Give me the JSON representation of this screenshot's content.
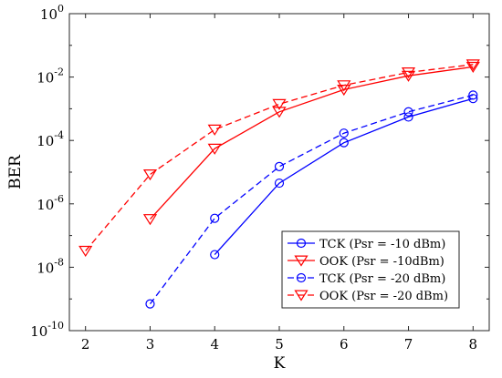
{
  "chart_data": {
    "type": "line",
    "title": "",
    "xlabel": "K",
    "ylabel": "BER",
    "xlim": [
      1.75,
      8.25
    ],
    "ylim_exponents": [
      -10,
      0
    ],
    "yscale": "log",
    "xticks": [
      "2",
      "3",
      "4",
      "5",
      "6",
      "7",
      "8"
    ],
    "yticks": [
      {
        "base": "10",
        "exp": "-10"
      },
      {
        "base": "10",
        "exp": "-8"
      },
      {
        "base": "10",
        "exp": "-6"
      },
      {
        "base": "10",
        "exp": "-4"
      },
      {
        "base": "10",
        "exp": "-2"
      },
      {
        "base": "10",
        "exp": "0"
      }
    ],
    "grid": false,
    "legend_position": "bottom-right",
    "series": [
      {
        "name": "TCK (Psr = -10 dBm)",
        "color": "#0000ff",
        "line": "solid",
        "marker": "circle",
        "x": [
          4,
          5,
          6,
          7,
          8
        ],
        "y": [
          2.5e-08,
          4.5e-06,
          8.5e-05,
          0.00055,
          0.0021
        ]
      },
      {
        "name": "OOK (Psr = -10dBm)",
        "color": "#ff0000",
        "line": "solid",
        "marker": "triangle-down",
        "x": [
          3,
          4,
          5,
          6,
          7,
          8
        ],
        "y": [
          3.3e-07,
          5.5e-05,
          0.0008,
          0.004,
          0.011,
          0.021
        ]
      },
      {
        "name": "TCK (Psr = -20 dBm)",
        "color": "#0000ff",
        "line": "dashed",
        "marker": "circle",
        "x": [
          3,
          4,
          5,
          6,
          7,
          8
        ],
        "y": [
          7e-10,
          3.5e-07,
          1.5e-05,
          0.00017,
          0.0008,
          0.0027
        ]
      },
      {
        "name": "OOK (Psr = -20 dBm)",
        "color": "#ff0000",
        "line": "dashed",
        "marker": "triangle-down",
        "x": [
          2,
          3,
          4,
          5,
          6,
          7,
          8
        ],
        "y": [
          3.3e-08,
          8.5e-06,
          0.00022,
          0.0014,
          0.0055,
          0.014,
          0.025
        ]
      }
    ]
  }
}
